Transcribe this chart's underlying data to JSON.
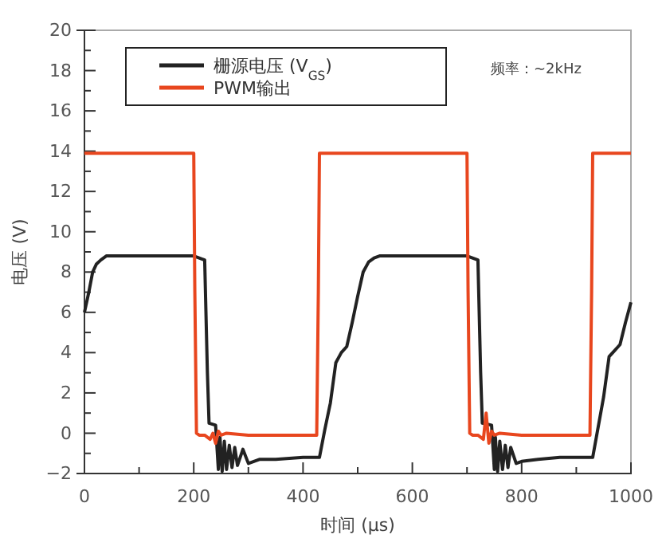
{
  "chart_data": {
    "type": "line",
    "xlabel": "时间 (μs)",
    "ylabel": "电压 (V)",
    "annotations": [
      "频率：~2kHz"
    ],
    "xlim": [
      0,
      1000
    ],
    "ylim": [
      -2,
      20
    ],
    "xticks": [
      0,
      {
        "value": 100,
        "label": null
      },
      200,
      {
        "value": 300,
        "label": null
      },
      400,
      {
        "value": 500,
        "label": null
      },
      600,
      {
        "value": 700,
        "label": null
      },
      800,
      {
        "value": 900,
        "label": null
      },
      1000
    ],
    "yticks": [
      -2,
      {
        "value": -1,
        "label": null
      },
      0,
      {
        "value": 1,
        "label": null
      },
      2,
      {
        "value": 3,
        "label": null
      },
      4,
      {
        "value": 5,
        "label": null
      },
      6,
      {
        "value": 7,
        "label": null
      },
      8,
      {
        "value": 9,
        "label": null
      },
      10,
      {
        "value": 11,
        "label": null
      },
      12,
      {
        "value": 13,
        "label": null
      },
      14,
      {
        "value": 15,
        "label": null
      },
      16,
      {
        "value": 17,
        "label": null
      },
      18,
      {
        "value": 19,
        "label": null
      },
      20
    ],
    "legend": "top left",
    "grid": false,
    "line_style": "solid",
    "marker": "none",
    "series": [
      {
        "name": "栅源电压 (V$_{GS}$)",
        "color": "#222222",
        "x": [
          0,
          8,
          15,
          22,
          30,
          40,
          100,
          200,
          220,
          225,
          228,
          240,
          245,
          248,
          252,
          256,
          260,
          265,
          270,
          275,
          280,
          290,
          300,
          320,
          350,
          400,
          430,
          440,
          450,
          460,
          470,
          480,
          490,
          500,
          510,
          520,
          530,
          540,
          600,
          700,
          720,
          725,
          728,
          745,
          750,
          752,
          756,
          760,
          765,
          770,
          775,
          780,
          790,
          800,
          830,
          870,
          930,
          940,
          950,
          960,
          970,
          980,
          990,
          1000
        ],
        "values": [
          6,
          7,
          8,
          8.4,
          8.6,
          8.8,
          8.8,
          8.8,
          8.6,
          3,
          0.5,
          0.4,
          -1.8,
          -0.2,
          -1.9,
          -0.4,
          -1.8,
          -0.6,
          -1.7,
          -0.7,
          -1.6,
          -0.8,
          -1.5,
          -1.3,
          -1.3,
          -1.2,
          -1.2,
          0.2,
          1.5,
          3.5,
          4,
          4.3,
          5.5,
          6.8,
          8,
          8.5,
          8.7,
          8.8,
          8.8,
          8.8,
          8.6,
          3,
          0.5,
          0.4,
          -1.8,
          -0.2,
          -1.9,
          -0.4,
          -1.8,
          -0.6,
          -1.7,
          -0.7,
          -1.5,
          -1.4,
          -1.3,
          -1.2,
          -1.2,
          0.3,
          1.8,
          3.8,
          4.1,
          4.4,
          5.5,
          6.5
        ]
      },
      {
        "name": "PWM输出",
        "color": "#e8461e",
        "x": [
          0,
          100,
          200,
          202,
          205,
          210,
          220,
          230,
          235,
          240,
          245,
          250,
          260,
          300,
          400,
          425,
          428,
          430,
          500,
          600,
          700,
          702,
          705,
          710,
          720,
          730,
          735,
          740,
          745,
          750,
          760,
          800,
          900,
          925,
          928,
          930,
          1000
        ],
        "values": [
          13.9,
          13.9,
          13.9,
          7,
          0,
          -0.1,
          -0.1,
          -0.3,
          0,
          -0.5,
          0.1,
          -0.1,
          0,
          -0.1,
          -0.1,
          -0.1,
          7,
          13.9,
          13.9,
          13.9,
          13.9,
          7,
          0,
          -0.1,
          -0.1,
          -0.3,
          1,
          -0.5,
          0.1,
          -0.1,
          0,
          -0.1,
          -0.1,
          -0.1,
          7,
          13.9,
          13.9
        ]
      }
    ]
  }
}
